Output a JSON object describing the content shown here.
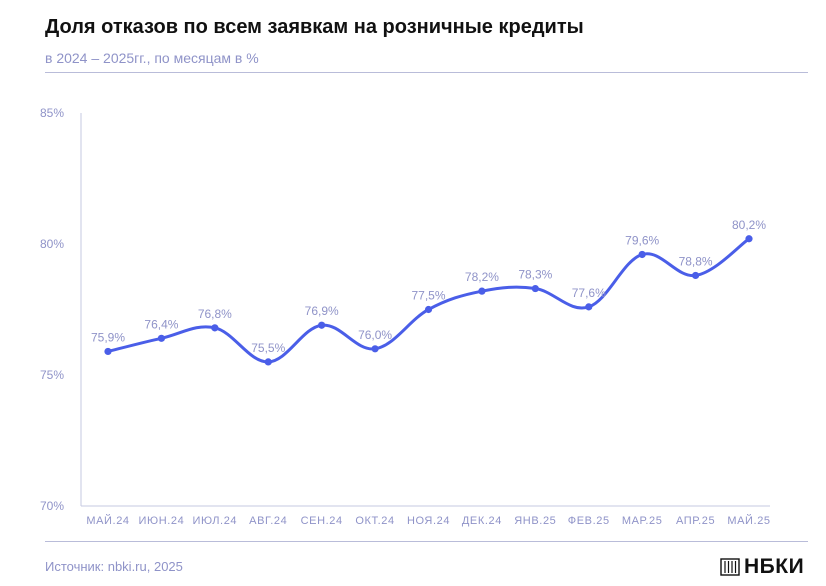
{
  "header": {
    "title": "Доля отказов по всем заявкам на розничные кредиты",
    "subtitle": "в 2024 – 2025гг., по месяцам в %"
  },
  "footer": {
    "source": "Источник: nbki.ru, 2025",
    "logo_text": "НБКИ"
  },
  "colors": {
    "line": "#4a5ee8",
    "axis_text": "#8f93c8",
    "title": "#111111"
  },
  "chart_data": {
    "type": "line",
    "title": "Доля отказов по всем заявкам на розничные кредиты",
    "subtitle": "в 2024 – 2025гг., по месяцам в %",
    "xlabel": "",
    "ylabel": "",
    "ylim": [
      70,
      85
    ],
    "yticks": [
      70,
      75,
      80,
      85
    ],
    "ytick_labels": [
      "70%",
      "75%",
      "80%",
      "85%"
    ],
    "grid": false,
    "legend": "none",
    "categories": [
      "МАЙ.24",
      "ИЮН.24",
      "ИЮЛ.24",
      "АВГ.24",
      "СЕН.24",
      "ОКТ.24",
      "НОЯ.24",
      "ДЕК.24",
      "ЯНВ.25",
      "ФЕВ.25",
      "МАР.25",
      "АПР.25",
      "МАЙ.25"
    ],
    "values": [
      75.9,
      76.4,
      76.8,
      75.5,
      76.9,
      76.0,
      77.5,
      78.2,
      78.3,
      77.6,
      79.6,
      78.8,
      80.2
    ],
    "data_labels": [
      "75,9%",
      "76,4%",
      "76,8%",
      "75,5%",
      "76,9%",
      "76,0%",
      "77,5%",
      "78,2%",
      "78,3%",
      "77,6%",
      "79,6%",
      "78,8%",
      "80,2%"
    ]
  }
}
